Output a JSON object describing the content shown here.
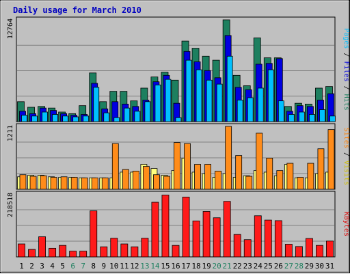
{
  "chart_data": {
    "type": "bar",
    "title": "Daily usage for March 2010",
    "categories": [
      "1",
      "2",
      "3",
      "4",
      "5",
      "6",
      "7",
      "8",
      "9",
      "10",
      "11",
      "12",
      "13",
      "14",
      "15",
      "16",
      "17",
      "18",
      "19",
      "20",
      "21",
      "22",
      "23",
      "24",
      "25",
      "26",
      "27",
      "28",
      "29",
      "30",
      "31"
    ],
    "weekend_days": [
      "6",
      "7",
      "13",
      "14",
      "20",
      "21",
      "27",
      "28"
    ],
    "panels": [
      {
        "id": "hits-files-pages",
        "ymax_label": "12764",
        "ymax": 12764,
        "ylabel_parts": [
          {
            "text": "Pages",
            "color": "#00c0ff"
          },
          {
            "text": " / ",
            "color": "#000000"
          },
          {
            "text": "Files",
            "color": "#0000e0"
          },
          {
            "text": " / ",
            "color": "#000000"
          },
          {
            "text": "Hits",
            "color": "#208060"
          }
        ],
        "series": [
          {
            "name": "Hits",
            "color": "#1d7f5f",
            "values": [
              2500,
              1800,
              1900,
              1700,
              1200,
              1000,
              2000,
              6100,
              2500,
              3800,
              3800,
              2600,
              4200,
              5600,
              6200,
              5200,
              10100,
              9200,
              8200,
              7700,
              12764,
              5800,
              4500,
              10500,
              8000,
              8000,
              1900,
              2300,
              2200,
              4200,
              4400
            ]
          },
          {
            "name": "Files",
            "color": "#0000e0",
            "values": [
              1300,
              1000,
              1700,
              1400,
              1000,
              800,
              900,
              4800,
              1600,
              2500,
              2200,
              1900,
              2700,
              5000,
              5800,
              2300,
              8800,
              7500,
              6400,
              5500,
              10800,
              4300,
              4000,
              7200,
              7300,
              7900,
              1300,
              2000,
              1900,
              2700,
              3500
            ]
          },
          {
            "name": "Pages",
            "color": "#00c0ff",
            "values": [
              800,
              700,
              1200,
              900,
              700,
              600,
              700,
              4300,
              1100,
              500,
              1700,
              1300,
              2500,
              4600,
              5300,
              500,
              7700,
              6500,
              5200,
              4700,
              8200,
              2700,
              3000,
              4200,
              6500,
              2600,
              900,
              1200,
              900,
              1500,
              700
            ]
          }
        ]
      },
      {
        "id": "sites-visits",
        "ymax_label": "1211",
        "ymax": 1211,
        "ylabel_parts": [
          {
            "text": "Sites",
            "color": "#ff8000"
          },
          {
            "text": " / ",
            "color": "#000000"
          },
          {
            "text": "Visits",
            "color": "#d0c000"
          }
        ],
        "series": [
          {
            "name": "Visits",
            "color": "#ffff80",
            "values": [
              240,
              270,
              270,
              240,
              230,
              230,
              220,
              220,
              220,
              220,
              330,
              330,
              480,
              400,
              270,
              360,
              600,
              330,
              300,
              230,
              300,
              230,
              260,
              360,
              330,
              260,
              480,
              220,
              220,
              300,
              330
            ]
          },
          {
            "name": "Sites",
            "color": "#ff8c1a",
            "values": [
              280,
              250,
              260,
              230,
              240,
              230,
              220,
              220,
              220,
              880,
              380,
              350,
              440,
              280,
              250,
              900,
              880,
              480,
              480,
              350,
              1211,
              650,
              250,
              1080,
              600,
              360,
              500,
              230,
              500,
              780,
              1150
            ]
          }
        ]
      },
      {
        "id": "kbytes",
        "ymax_label": "218518",
        "ymax": 218518,
        "ylabel_parts": [
          {
            "text": "KBytes",
            "color": "#e00000"
          }
        ],
        "series": [
          {
            "name": "KBytes",
            "color": "#ff1a1a",
            "values": [
              45000,
              26000,
              70000,
              30000,
              40000,
              20000,
              20000,
              160000,
              35000,
              65000,
              45000,
              35000,
              65000,
              190000,
              215000,
              40000,
              208000,
              125000,
              158000,
              136000,
              193000,
              78000,
              60000,
              143000,
              128000,
              126000,
              44000,
              36000,
              64000,
              40000,
              55000
            ]
          }
        ]
      }
    ]
  }
}
